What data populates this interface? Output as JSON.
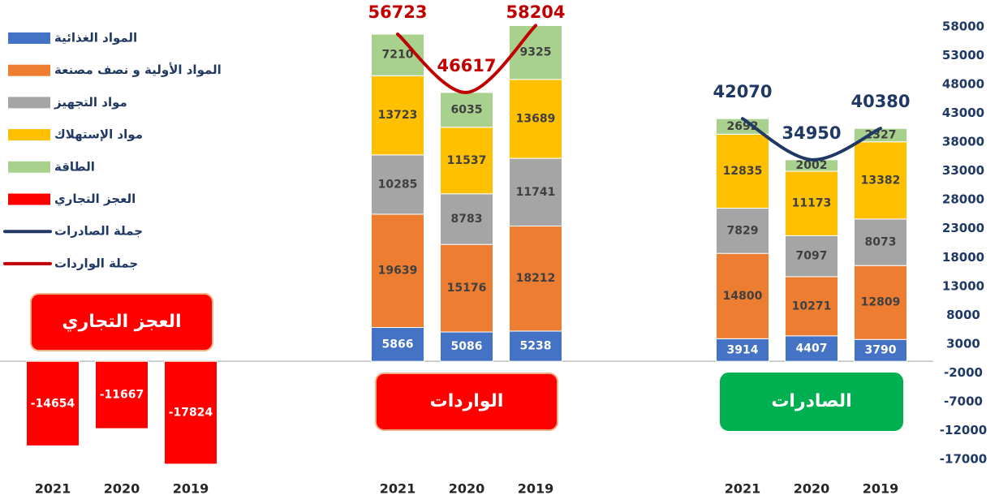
{
  "chart_data": {
    "type": "grouped_stacked_bar",
    "categories": [
      "2021",
      "2020",
      "2019",
      "2021",
      "2020",
      "2019",
      "2021",
      "2020",
      "2019"
    ],
    "ylim": [
      -17000,
      58000
    ],
    "yticks": [
      58000,
      53000,
      48000,
      43000,
      38000,
      33000,
      28000,
      23000,
      18000,
      13000,
      8000,
      3000,
      -2000,
      -7000,
      -12000,
      -17000
    ],
    "groups": [
      {
        "label": "العجز التجاري",
        "color": "#ff0000"
      },
      {
        "label": "الواردات",
        "color": "#ff0000"
      },
      {
        "label": "الصادرات",
        "color": "#00b050"
      }
    ],
    "series": [
      {
        "name": "المواد الغذائية",
        "color": "#4472c4",
        "values": [
          null,
          null,
          null,
          5866,
          5086,
          5238,
          3914,
          4407,
          3790
        ]
      },
      {
        "name": "المواد الأولية و نصف مصنعة",
        "color": "#ed7d31",
        "values": [
          null,
          null,
          null,
          19639,
          15176,
          18212,
          14800,
          10271,
          12809
        ]
      },
      {
        "name": "مواد التجهيز",
        "color": "#a5a5a5",
        "values": [
          null,
          null,
          null,
          10285,
          8783,
          11741,
          7829,
          7097,
          8073
        ]
      },
      {
        "name": "مواد الإستهلاك",
        "color": "#ffc000",
        "values": [
          null,
          null,
          null,
          13723,
          11537,
          13689,
          12835,
          11173,
          13382
        ]
      },
      {
        "name": "الطاقة",
        "color": "#a9d18e",
        "values": [
          null,
          null,
          null,
          7210,
          6035,
          9325,
          2692,
          2002,
          2327
        ]
      },
      {
        "name": "العجز التجاري",
        "color": "#ff0000",
        "values": [
          -14654,
          -11667,
          -17824,
          null,
          null,
          null,
          null,
          null,
          null
        ]
      },
      {
        "name": "جملة الصادرات",
        "color": "#1f3864",
        "kind": "line",
        "values": [
          null,
          null,
          null,
          null,
          null,
          null,
          42070,
          34950,
          40380
        ]
      },
      {
        "name": "جملة الواردات",
        "color": "#c00000",
        "kind": "line",
        "values": [
          null,
          null,
          null,
          56723,
          46617,
          58204,
          null,
          null,
          null
        ]
      }
    ]
  }
}
